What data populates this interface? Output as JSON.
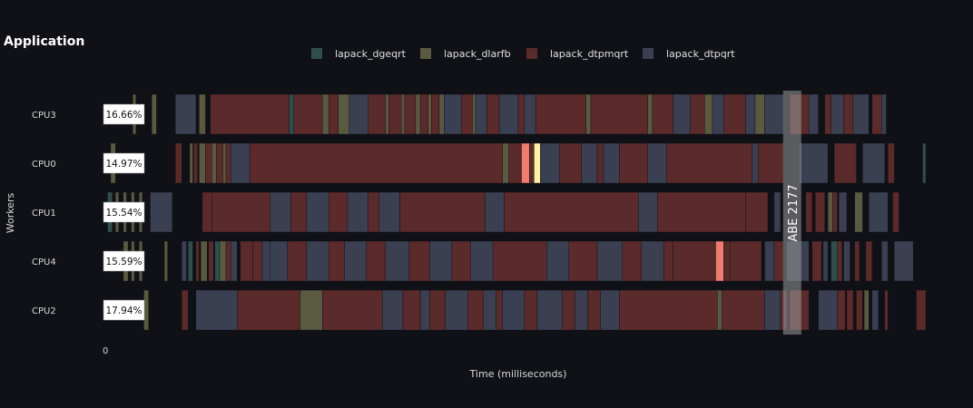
{
  "title": "Application",
  "chart_data": {
    "type": "gantt",
    "title": "Application",
    "xlabel": "Time (milliseconds)",
    "ylabel": "Workers",
    "x_tick_labels": [
      "0"
    ],
    "x_range": [
      0,
      2600
    ],
    "legend": {
      "placement": "top-center",
      "items": [
        {
          "name": "lapack_dgeqrt",
          "color": "#2f4f4f"
        },
        {
          "name": "lapack_dlarfb",
          "color": "#5a5a40"
        },
        {
          "name": "lapack_dtpmqrt",
          "color": "#5b2a2a"
        },
        {
          "name": "lapack_dtpqrt",
          "color": "#3a3f52"
        }
      ]
    },
    "highlight_colors": {
      "hot": "#f07b6e",
      "warm": "#fff3a0"
    },
    "marker": {
      "label": "ABE 2177",
      "x": 2177
    },
    "workers": [
      {
        "name": "CPU3",
        "percent": "16.66%",
        "tasks": [
          [
            90,
            100,
            "dlarfb"
          ],
          [
            150,
            165,
            "dlarfb"
          ],
          [
            225,
            290,
            "dtpqrt"
          ],
          [
            300,
            320,
            "dlarfb"
          ],
          [
            335,
            585,
            "dtpmqrt"
          ],
          [
            585,
            600,
            "dgeqrt"
          ],
          [
            600,
            690,
            "dtpmqrt"
          ],
          [
            690,
            710,
            "dlarfb"
          ],
          [
            710,
            740,
            "dtpmqrt"
          ],
          [
            740,
            775,
            "dlarfb"
          ],
          [
            775,
            835,
            "dtpqrt"
          ],
          [
            835,
            890,
            "dtpmqrt"
          ],
          [
            890,
            900,
            "dlarfb"
          ],
          [
            900,
            940,
            "dtpmqrt"
          ],
          [
            940,
            950,
            "dlarfb"
          ],
          [
            950,
            985,
            "dtpmqrt"
          ],
          [
            985,
            1000,
            "dlarfb"
          ],
          [
            1000,
            1025,
            "dtpmqrt"
          ],
          [
            1025,
            1035,
            "dlarfb"
          ],
          [
            1035,
            1060,
            "dtpmqrt"
          ],
          [
            1060,
            1075,
            "dlarfb"
          ],
          [
            1075,
            1130,
            "dtpqrt"
          ],
          [
            1130,
            1165,
            "dtpmqrt"
          ],
          [
            1165,
            1175,
            "dlarfb"
          ],
          [
            1175,
            1210,
            "dtpqrt"
          ],
          [
            1210,
            1250,
            "dtpmqrt"
          ],
          [
            1250,
            1310,
            "dtpqrt"
          ],
          [
            1310,
            1330,
            "dtpmqrt"
          ],
          [
            1330,
            1365,
            "dtpqrt"
          ],
          [
            1365,
            1525,
            "dtpmqrt"
          ],
          [
            1525,
            1540,
            "dlarfb"
          ],
          [
            1540,
            1720,
            "dtpmqrt"
          ],
          [
            1720,
            1735,
            "dlarfb"
          ],
          [
            1735,
            1800,
            "dtpmqrt"
          ],
          [
            1800,
            1855,
            "dtpqrt"
          ],
          [
            1855,
            1900,
            "dtpmqrt"
          ],
          [
            1900,
            1925,
            "dlarfb"
          ],
          [
            1925,
            1960,
            "dtpqrt"
          ],
          [
            1960,
            2030,
            "dtpmqrt"
          ],
          [
            2030,
            2060,
            "dtpqrt"
          ],
          [
            2060,
            2090,
            "dlarfb"
          ],
          [
            2090,
            2150,
            "dtpqrt"
          ],
          [
            2170,
            2230,
            "dtpmqrt"
          ],
          [
            2230,
            2260,
            "dtpqrt"
          ],
          [
            2280,
            2300,
            "dtpmqrt"
          ],
          [
            2300,
            2340,
            "dtpqrt"
          ],
          [
            2340,
            2370,
            "dtpmqrt"
          ],
          [
            2370,
            2420,
            "dtpqrt"
          ],
          [
            2430,
            2460,
            "dtpmqrt"
          ],
          [
            2460,
            2475,
            "dtpqrt"
          ]
        ]
      },
      {
        "name": "CPU0",
        "percent": "14.97%",
        "tasks": [
          [
            20,
            35,
            "dlarfb"
          ],
          [
            225,
            245,
            "dtpmqrt"
          ],
          [
            270,
            280,
            "dlarfb"
          ],
          [
            283,
            295,
            "dtpmqrt"
          ],
          [
            300,
            320,
            "dlarfb"
          ],
          [
            320,
            340,
            "dtpmqrt"
          ],
          [
            340,
            355,
            "dlarfb"
          ],
          [
            355,
            375,
            "dtpmqrt"
          ],
          [
            375,
            385,
            "dlarfb"
          ],
          [
            385,
            400,
            "dtpmqrt"
          ],
          [
            400,
            460,
            "dtpqrt"
          ],
          [
            460,
            1260,
            "dtpmqrt"
          ],
          [
            1260,
            1280,
            "dlarfb"
          ],
          [
            1280,
            1320,
            "dtpmqrt"
          ],
          [
            1320,
            1345,
            "hot"
          ],
          [
            1345,
            1360,
            "dtpmqrt"
          ],
          [
            1360,
            1380,
            "warm"
          ],
          [
            1380,
            1440,
            "dtpqrt"
          ],
          [
            1440,
            1510,
            "dtpmqrt"
          ],
          [
            1510,
            1560,
            "dtpqrt"
          ],
          [
            1560,
            1580,
            "dtpmqrt"
          ],
          [
            1580,
            1630,
            "dtpqrt"
          ],
          [
            1630,
            1720,
            "dtpmqrt"
          ],
          [
            1720,
            1780,
            "dtpqrt"
          ],
          [
            1780,
            2050,
            "dtpmqrt"
          ],
          [
            2050,
            2070,
            "dtpqrt"
          ],
          [
            2070,
            2150,
            "dtpmqrt"
          ],
          [
            2200,
            2290,
            "dtpqrt"
          ],
          [
            2310,
            2380,
            "dtpmqrt"
          ],
          [
            2400,
            2470,
            "dtpqrt"
          ],
          [
            2480,
            2500,
            "dtpmqrt"
          ],
          [
            2590,
            2600,
            "dgeqrt"
          ]
        ]
      },
      {
        "name": "CPU1",
        "percent": "15.54%",
        "tasks": [
          [
            10,
            25,
            "dgeqrt"
          ],
          [
            35,
            45,
            "dlarfb"
          ],
          [
            60,
            70,
            "dlarfb"
          ],
          [
            85,
            95,
            "dlarfb"
          ],
          [
            110,
            120,
            "dlarfb"
          ],
          [
            145,
            215,
            "dtpqrt"
          ],
          [
            310,
            340,
            "dtpmqrt"
          ],
          [
            340,
            525,
            "dtpmqrt"
          ],
          [
            525,
            590,
            "dtpqrt"
          ],
          [
            590,
            640,
            "dtpmqrt"
          ],
          [
            640,
            710,
            "dtpqrt"
          ],
          [
            710,
            770,
            "dtpmqrt"
          ],
          [
            770,
            835,
            "dtpqrt"
          ],
          [
            835,
            870,
            "dtpmqrt"
          ],
          [
            870,
            935,
            "dtpqrt"
          ],
          [
            935,
            1205,
            "dtpmqrt"
          ],
          [
            1205,
            1265,
            "dtpqrt"
          ],
          [
            1265,
            1690,
            "dtpmqrt"
          ],
          [
            1690,
            1750,
            "dtpqrt"
          ],
          [
            1750,
            2030,
            "dtpmqrt"
          ],
          [
            2030,
            2100,
            "dtpmqrt"
          ],
          [
            2120,
            2140,
            "dtpqrt"
          ],
          [
            2220,
            2240,
            "dtpmqrt"
          ],
          [
            2250,
            2280,
            "dtpmqrt"
          ],
          [
            2290,
            2305,
            "dlarfb"
          ],
          [
            2305,
            2320,
            "dtpmqrt"
          ],
          [
            2325,
            2350,
            "dtpqrt"
          ],
          [
            2375,
            2400,
            "dlarfb"
          ],
          [
            2420,
            2480,
            "dtpqrt"
          ],
          [
            2495,
            2515,
            "dtpmqrt"
          ]
        ]
      },
      {
        "name": "CPU4",
        "percent": "15.59%",
        "tasks": [
          [
            60,
            75,
            "dlarfb"
          ],
          [
            85,
            95,
            "dlarfb"
          ],
          [
            110,
            120,
            "dlarfb"
          ],
          [
            190,
            200,
            "dlarfb"
          ],
          [
            245,
            260,
            "dtpqrt"
          ],
          [
            265,
            280,
            "dgeqrt"
          ],
          [
            290,
            300,
            "dtpmqrt"
          ],
          [
            305,
            325,
            "dlarfb"
          ],
          [
            330,
            345,
            "dtpmqrt"
          ],
          [
            350,
            365,
            "dgeqrt"
          ],
          [
            365,
            385,
            "dlarfb"
          ],
          [
            385,
            400,
            "dtpmqrt"
          ],
          [
            400,
            420,
            "dtpqrt"
          ],
          [
            430,
            470,
            "dtpmqrt"
          ],
          [
            470,
            500,
            "dtpmqrt"
          ],
          [
            500,
            525,
            "dtpqrt"
          ],
          [
            525,
            580,
            "dtpqrt"
          ],
          [
            580,
            640,
            "dtpmqrt"
          ],
          [
            640,
            710,
            "dtpqrt"
          ],
          [
            710,
            760,
            "dtpmqrt"
          ],
          [
            760,
            830,
            "dtpqrt"
          ],
          [
            830,
            890,
            "dtpmqrt"
          ],
          [
            890,
            965,
            "dtpqrt"
          ],
          [
            965,
            1030,
            "dtpmqrt"
          ],
          [
            1030,
            1100,
            "dtpqrt"
          ],
          [
            1100,
            1160,
            "dtpmqrt"
          ],
          [
            1160,
            1230,
            "dtpqrt"
          ],
          [
            1230,
            1400,
            "dtpmqrt"
          ],
          [
            1400,
            1470,
            "dtpqrt"
          ],
          [
            1470,
            1560,
            "dtpmqrt"
          ],
          [
            1560,
            1640,
            "dtpqrt"
          ],
          [
            1640,
            1700,
            "dtpmqrt"
          ],
          [
            1700,
            1770,
            "dtpqrt"
          ],
          [
            1770,
            1800,
            "dtpmqrt"
          ],
          [
            1800,
            1935,
            "dtpmqrt"
          ],
          [
            1935,
            1960,
            "hot"
          ],
          [
            1960,
            1980,
            "dtpmqrt"
          ],
          [
            1980,
            2080,
            "dtpmqrt"
          ],
          [
            2090,
            2120,
            "dtpqrt"
          ],
          [
            2120,
            2150,
            "dtpmqrt"
          ],
          [
            2160,
            2230,
            "dtpqrt"
          ],
          [
            2240,
            2270,
            "dtpmqrt"
          ],
          [
            2275,
            2290,
            "dtpqrt"
          ],
          [
            2300,
            2320,
            "dgeqrt"
          ],
          [
            2320,
            2335,
            "dtpmqrt"
          ],
          [
            2340,
            2360,
            "dtpqrt"
          ],
          [
            2375,
            2390,
            "dtpmqrt"
          ],
          [
            2410,
            2430,
            "dtpmqrt"
          ],
          [
            2460,
            2480,
            "dtpqrt"
          ],
          [
            2500,
            2560,
            "dtpqrt"
          ]
        ]
      },
      {
        "name": "CPU2",
        "percent": "17.94%",
        "tasks": [
          [
            125,
            140,
            "dlarfb"
          ],
          [
            245,
            265,
            "dtpmqrt"
          ],
          [
            290,
            420,
            "dtpqrt"
          ],
          [
            420,
            620,
            "dtpmqrt"
          ],
          [
            620,
            690,
            "dlarfb"
          ],
          [
            690,
            880,
            "dtpmqrt"
          ],
          [
            880,
            945,
            "dtpqrt"
          ],
          [
            945,
            1000,
            "dtpmqrt"
          ],
          [
            1000,
            1030,
            "dtpqrt"
          ],
          [
            1030,
            1080,
            "dtpmqrt"
          ],
          [
            1080,
            1150,
            "dtpqrt"
          ],
          [
            1150,
            1200,
            "dtpmqrt"
          ],
          [
            1200,
            1240,
            "dtpqrt"
          ],
          [
            1240,
            1260,
            "dtpmqrt"
          ],
          [
            1260,
            1330,
            "dtpqrt"
          ],
          [
            1330,
            1370,
            "dtpmqrt"
          ],
          [
            1370,
            1450,
            "dtpqrt"
          ],
          [
            1450,
            1490,
            "dtpmqrt"
          ],
          [
            1490,
            1530,
            "dtpqrt"
          ],
          [
            1530,
            1570,
            "dtpmqrt"
          ],
          [
            1570,
            1630,
            "dtpqrt"
          ],
          [
            1630,
            1940,
            "dtpmqrt"
          ],
          [
            1940,
            1955,
            "dlarfb"
          ],
          [
            1955,
            2090,
            "dtpmqrt"
          ],
          [
            2090,
            2140,
            "dtpqrt"
          ],
          [
            2140,
            2160,
            "dtpmqrt"
          ],
          [
            2170,
            2230,
            "dtpmqrt"
          ],
          [
            2260,
            2320,
            "dtpqrt"
          ],
          [
            2320,
            2345,
            "dtpmqrt"
          ],
          [
            2350,
            2370,
            "dtpmqrt"
          ],
          [
            2380,
            2400,
            "dtpmqrt"
          ],
          [
            2405,
            2420,
            "dlarfb"
          ],
          [
            2430,
            2450,
            "dtpqrt"
          ],
          [
            2470,
            2480,
            "dtpmqrt"
          ],
          [
            2570,
            2600,
            "dtpmqrt"
          ]
        ]
      }
    ]
  }
}
